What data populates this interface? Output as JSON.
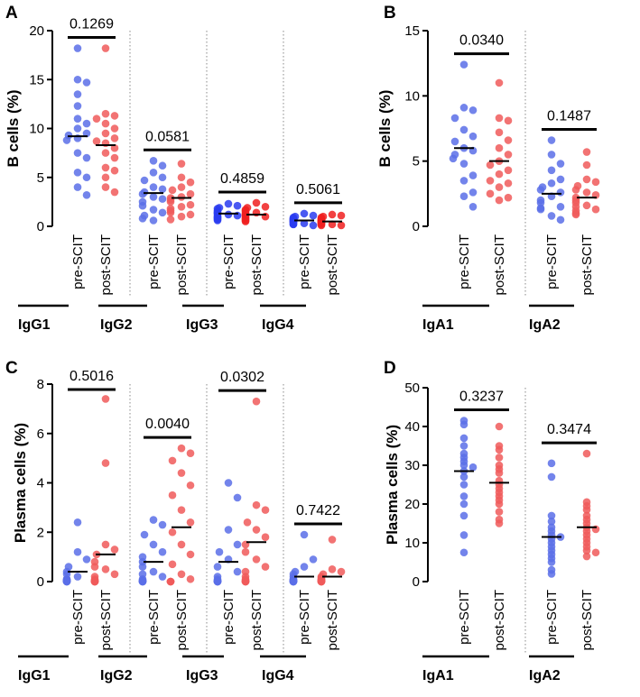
{
  "colors": {
    "pre": "#5b6ee8",
    "post": "#f05a5a",
    "pre_dense": "#2a3cf0",
    "post_dense": "#f02020",
    "line": "#000000",
    "divider": "#888888"
  },
  "chart_data": [
    {
      "id": "A",
      "type": "scatter",
      "panel_label": "A",
      "ylabel": "B cells (%)",
      "ylim": [
        0,
        20
      ],
      "yticks": [
        0,
        5,
        10,
        15,
        20
      ],
      "groups": [
        {
          "name": "IgG1",
          "p": "0.1269",
          "pre": {
            "label": "pre-SCIT",
            "mean": 9.2,
            "values": [
              18.2,
              15,
              14.7,
              13.5,
              12.3,
              11,
              10.5,
              10,
              9.5,
              9.3,
              9,
              8.8,
              7.5,
              7,
              5.5,
              5,
              4,
              3.2
            ]
          },
          "post": {
            "label": "post-SCIT",
            "mean": 8.3,
            "values": [
              18.2,
              11.5,
              11.3,
              11,
              10.5,
              10,
              9.5,
              9,
              8.7,
              8.5,
              8,
              7.5,
              7,
              6,
              5.7,
              5,
              4,
              3.5
            ]
          }
        },
        {
          "name": "IgG2",
          "p": "0.0581",
          "pre": {
            "label": "pre-SCIT",
            "mean": 3.4,
            "values": [
              6.7,
              6.2,
              5.5,
              5,
              4.7,
              4,
              3.8,
              3.5,
              3.3,
              3,
              2.8,
              2.5,
              2.1,
              1.7,
              1.4,
              1.1,
              0.8,
              0.6
            ]
          },
          "post": {
            "label": "post-SCIT",
            "mean": 2.9,
            "values": [
              6.4,
              5,
              4.5,
              4,
              3.7,
              3.3,
              3,
              2.9,
              2.7,
              2.5,
              2.2,
              2,
              1.8,
              1.6,
              1.4,
              1.2,
              1,
              0.7
            ]
          }
        },
        {
          "name": "IgG3",
          "p": "0.4859",
          "pre": {
            "label": "pre-SCIT",
            "mean": 1.3,
            "values": [
              2.3,
              2.1,
              1.9,
              1.8,
              1.6,
              1.5,
              1.4,
              1.3,
              1.3,
              1.2,
              1.1,
              1.1,
              1,
              0.9,
              0.9,
              0.8,
              0.7,
              0.6
            ]
          },
          "post": {
            "label": "post-SCIT",
            "mean": 1.2,
            "values": [
              2.4,
              2,
              1.9,
              1.7,
              1.6,
              1.5,
              1.4,
              1.3,
              1.2,
              1.2,
              1.1,
              1,
              1,
              0.9,
              0.8,
              0.7,
              0.6,
              0.5
            ]
          }
        },
        {
          "name": "IgG4",
          "p": "0.5061",
          "pre": {
            "label": "pre-SCIT",
            "mean": 0.6,
            "values": [
              1.3,
              1.1,
              1,
              0.9,
              0.8,
              0.7,
              0.7,
              0.6,
              0.6,
              0.5,
              0.5,
              0.4,
              0.4,
              0.3,
              0.3,
              0.2,
              0.2,
              0.1
            ]
          },
          "post": {
            "label": "post-SCIT",
            "mean": 0.5,
            "values": [
              1.2,
              1.1,
              1,
              0.9,
              0.8,
              0.7,
              0.6,
              0.6,
              0.5,
              0.5,
              0.4,
              0.4,
              0.3,
              0.3,
              0.2,
              0.2,
              0.1,
              0.1
            ]
          }
        }
      ]
    },
    {
      "id": "B",
      "type": "scatter",
      "panel_label": "B",
      "ylabel": "B cells (%)",
      "ylim": [
        0,
        15
      ],
      "yticks": [
        0,
        5,
        10,
        15
      ],
      "groups": [
        {
          "name": "IgA1",
          "p": "0.0340",
          "pre": {
            "label": "pre-SCIT",
            "mean": 6.0,
            "values": [
              12.4,
              9.1,
              8.9,
              8.3,
              7.4,
              6.9,
              6.5,
              6,
              5.8,
              5.5,
              5.2,
              4.8,
              3.9,
              3.5,
              2.6,
              2.3,
              1.5
            ]
          },
          "post": {
            "label": "post-SCIT",
            "mean": 5.0,
            "values": [
              11,
              8.3,
              8.1,
              7.2,
              6.6,
              6,
              5.5,
              5,
              4.7,
              4.3,
              4,
              3.5,
              3.3,
              3,
              2.5,
              2.2,
              2
            ]
          }
        },
        {
          "name": "IgA2",
          "p": "0.1487",
          "pre": {
            "label": "pre-SCIT",
            "mean": 2.5,
            "values": [
              6.6,
              5.5,
              4.8,
              4.3,
              3.6,
              3.3,
              3,
              2.8,
              2.6,
              2.3,
              2,
              1.8,
              1.5,
              1.4,
              1.3,
              0.8,
              0.5
            ]
          },
          "post": {
            "label": "post-SCIT",
            "mean": 2.2,
            "values": [
              5.7,
              4.7,
              3.6,
              3.4,
              3.1,
              2.8,
              2.6,
              2.4,
              2.2,
              2,
              1.8,
              1.6,
              1.5,
              1.3,
              1.2,
              1,
              0.9
            ]
          }
        }
      ]
    },
    {
      "id": "C",
      "type": "scatter",
      "panel_label": "C",
      "ylabel": "Plasma cells (%)",
      "ylim": [
        0,
        8
      ],
      "yticks": [
        0,
        2,
        4,
        6,
        8
      ],
      "groups": [
        {
          "name": "IgG1",
          "p": "0.5016",
          "pre": {
            "label": "pre-SCIT",
            "mean": 0.4,
            "values": [
              2.4,
              1.2,
              0.9,
              0.6,
              0.4,
              0.3,
              0.2,
              0.1,
              0.1,
              0.05,
              0.05,
              0.02,
              0.02,
              0.01,
              0,
              0,
              0,
              0
            ]
          },
          "post": {
            "label": "post-SCIT",
            "mean": 1.1,
            "values": [
              7.4,
              4.8,
              1.5,
              1.3,
              1.1,
              0.8,
              0.6,
              0.5,
              0.3,
              0.2,
              0.1,
              0.05,
              0.02,
              0,
              0,
              0,
              0,
              0
            ]
          }
        },
        {
          "name": "IgG2",
          "p": "0.0040",
          "pre": {
            "label": "pre-SCIT",
            "mean": 0.8,
            "values": [
              2.5,
              2.3,
              1.9,
              1.5,
              1.2,
              1.0,
              0.8,
              0.6,
              0.4,
              0.3,
              0.2,
              0.1,
              0.05,
              0.02,
              0,
              0,
              0,
              0
            ]
          },
          "post": {
            "label": "post-SCIT",
            "mean": 2.2,
            "values": [
              5.4,
              5.2,
              4.9,
              4.4,
              3.9,
              3.5,
              2.9,
              2.4,
              2,
              1.5,
              1.1,
              0.7,
              0.3,
              0.1,
              0,
              0,
              0,
              0
            ]
          }
        },
        {
          "name": "IgG3",
          "p": "0.0302",
          "pre": {
            "label": "pre-SCIT",
            "mean": 0.8,
            "values": [
              4,
              3.4,
              2.1,
              1.5,
              1.2,
              0.9,
              0.6,
              0.4,
              0.2,
              0.1,
              0.05,
              0.02,
              0.01,
              0,
              0,
              0,
              0,
              0
            ]
          },
          "post": {
            "label": "post-SCIT",
            "mean": 1.6,
            "values": [
              7.3,
              3.1,
              2.9,
              2.4,
              2.1,
              1.8,
              1.5,
              1.2,
              0.9,
              0.6,
              0.4,
              0.2,
              0.1,
              0.05,
              0,
              0,
              0,
              0
            ]
          }
        },
        {
          "name": "IgG4",
          "p": "0.7422",
          "pre": {
            "label": "pre-SCIT",
            "mean": 0.2,
            "values": [
              1.9,
              0.9,
              0.6,
              0.4,
              0.3,
              0.2,
              0.1,
              0.1,
              0.05,
              0.05,
              0.02,
              0.02,
              0.01,
              0,
              0,
              0,
              0,
              0
            ]
          },
          "post": {
            "label": "post-SCIT",
            "mean": 0.2,
            "values": [
              1.7,
              0.5,
              0.4,
              0.3,
              0.2,
              0.15,
              0.1,
              0.1,
              0.05,
              0.05,
              0.02,
              0.02,
              0.01,
              0,
              0,
              0,
              0,
              0
            ]
          }
        }
      ]
    },
    {
      "id": "D",
      "type": "scatter",
      "panel_label": "D",
      "ylabel": "Plasma cells (%)",
      "ylim": [
        0,
        50
      ],
      "yticks": [
        0,
        10,
        20,
        30,
        40,
        50
      ],
      "groups": [
        {
          "name": "IgA1",
          "p": "0.3237",
          "pre": {
            "label": "pre-SCIT",
            "mean": 28.5,
            "values": [
              41.5,
              40.5,
              37,
              35,
              33,
              32,
              31,
              30,
              29.5,
              28.5,
              27,
              25,
              22,
              20,
              17,
              12,
              7.5
            ]
          },
          "post": {
            "label": "post-SCIT",
            "mean": 25.5,
            "values": [
              40,
              35,
              34,
              32,
              30,
              29,
              28,
              26,
              25,
              24,
              23,
              22,
              21,
              20,
              18,
              16,
              15
            ]
          }
        },
        {
          "name": "IgA2",
          "p": "0.3474",
          "pre": {
            "label": "pre-SCIT",
            "mean": 11.5,
            "values": [
              30.5,
              27,
              17,
              15.5,
              14,
              13,
              12,
              11.5,
              11,
              10,
              9,
              8,
              7,
              6,
              5,
              3,
              2
            ]
          },
          "post": {
            "label": "post-SCIT",
            "mean": 14.0,
            "values": [
              33,
              20.5,
              19.5,
              18.5,
              17,
              16,
              15,
              14,
              13.5,
              13,
              12,
              11,
              10,
              9,
              8,
              7.5,
              6.5
            ]
          }
        }
      ]
    }
  ]
}
